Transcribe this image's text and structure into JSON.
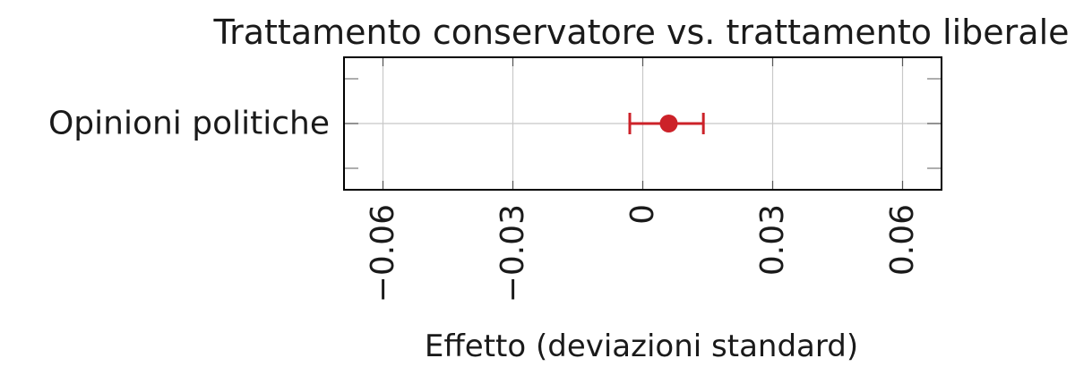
{
  "chart_data": {
    "type": "scatter",
    "title": "Trattamento conservatore vs. trattamento liberale",
    "xlabel": "Effetto (deviazioni standard)",
    "ylabel": "",
    "xlim": [
      -0.069,
      0.069
    ],
    "xticks": [
      -0.06,
      -0.03,
      0,
      0.03,
      0.06
    ],
    "xtick_labels": [
      "−0.06",
      "−0.03",
      "0",
      "0.03",
      "0.06"
    ],
    "categories": [
      "Opinioni politiche"
    ],
    "grid": true,
    "points": [
      {
        "category": "Opinioni politiche",
        "x": 0.006,
        "ci_low": -0.003,
        "ci_high": 0.014
      }
    ],
    "colors": {
      "point": "#cc2229",
      "frame": "#000000",
      "grid": "#c8c8c8"
    }
  }
}
